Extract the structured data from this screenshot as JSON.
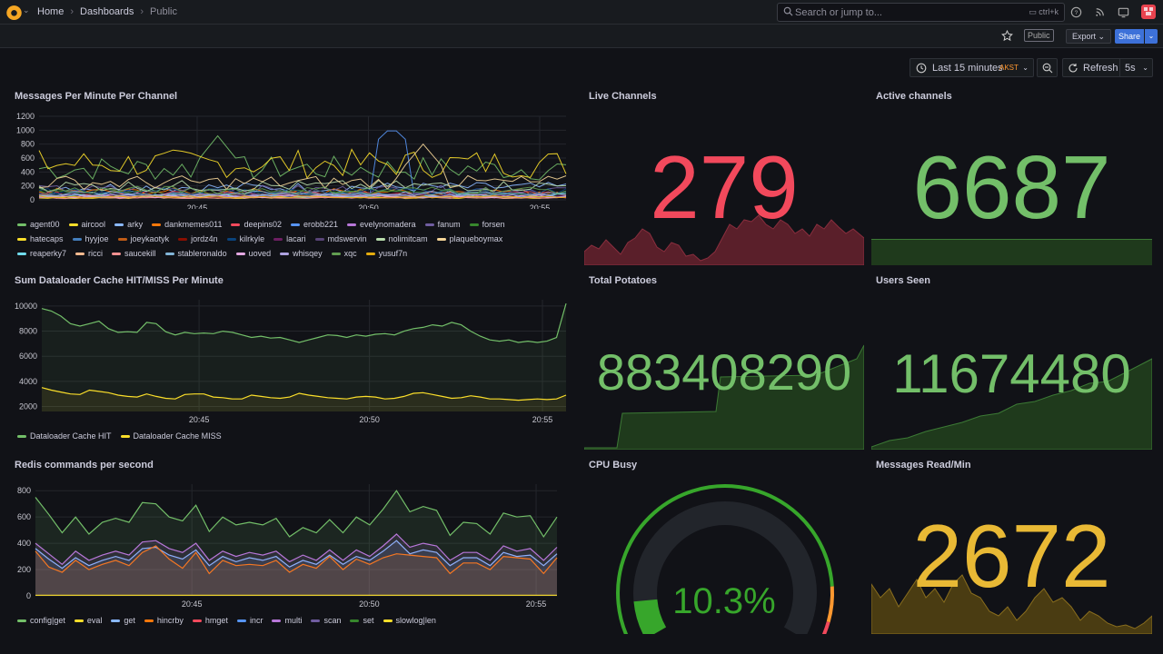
{
  "topbar": {
    "breadcrumb": [
      "Home",
      "Dashboards",
      "Public"
    ],
    "search_placeholder": "Search or jump to...",
    "search_shortcut": "ctrl+k"
  },
  "toolbar": {
    "public_badge": "Public",
    "export_label": "Export",
    "share_label": "Share"
  },
  "time_controls": {
    "range_label": "Last 15 minutes",
    "timezone": "AKST",
    "refresh_label": "Refresh",
    "interval": "5s"
  },
  "panels": {
    "messages_per_minute": {
      "title": "Messages Per Minute Per Channel",
      "chart_data": {
        "type": "line",
        "y_ticks": [
          0,
          200,
          400,
          600,
          800,
          1000,
          1200
        ],
        "x_ticks": [
          "20:45",
          "20:50",
          "20:55"
        ],
        "ylim": [
          0,
          1200
        ],
        "series": [
          {
            "name": "agent00",
            "color": "#73bf69"
          },
          {
            "name": "aircool",
            "color": "#fade2a"
          },
          {
            "name": "arky",
            "color": "#8ab8ff"
          },
          {
            "name": "dankmemes011",
            "color": "#ff780a"
          },
          {
            "name": "deepins02",
            "color": "#f2495c"
          },
          {
            "name": "erobb221",
            "color": "#5794f2"
          },
          {
            "name": "evelynomadera",
            "color": "#b877d9"
          },
          {
            "name": "fanum",
            "color": "#705da0"
          },
          {
            "name": "forsen",
            "color": "#37872d"
          },
          {
            "name": "hatecaps",
            "color": "#fade2a"
          },
          {
            "name": "hyyjoe",
            "color": "#447ebc"
          },
          {
            "name": "joeykaotyk",
            "color": "#c15c17"
          },
          {
            "name": "jordz4n",
            "color": "#890f02"
          },
          {
            "name": "kilrkyle",
            "color": "#0a437c"
          },
          {
            "name": "lacari",
            "color": "#6d1f62"
          },
          {
            "name": "mdswervin",
            "color": "#584477"
          },
          {
            "name": "nolimitcam",
            "color": "#b7dbab"
          },
          {
            "name": "plaqueboymax",
            "color": "#f4d598"
          },
          {
            "name": "reaperky7",
            "color": "#70dbed"
          },
          {
            "name": "ricci",
            "color": "#f9ba8f"
          },
          {
            "name": "saucekill",
            "color": "#f29191"
          },
          {
            "name": "stableronaldo",
            "color": "#82b5d8"
          },
          {
            "name": "uoved",
            "color": "#e5a8e2"
          },
          {
            "name": "whisqey",
            "color": "#aea2e0"
          },
          {
            "name": "xqc",
            "color": "#629e51"
          },
          {
            "name": "yusuf7n",
            "color": "#e5ac0e"
          }
        ]
      }
    },
    "dataloader_cache": {
      "title": "Sum Dataloader Cache HIT/MISS Per Minute",
      "chart_data": {
        "type": "area",
        "y_ticks": [
          2000,
          4000,
          6000,
          8000,
          10000
        ],
        "x_ticks": [
          "20:45",
          "20:50",
          "20:55"
        ],
        "ylim": [
          1600,
          10500
        ],
        "series": [
          {
            "name": "Dataloader Cache HIT",
            "color": "#73bf69",
            "values": [
              9800,
              9600,
              9200,
              8600,
              8400,
              8600,
              8800,
              8200,
              7900,
              7950,
              7900,
              8700,
              8600,
              7950,
              7700,
              7900,
              7800,
              7850,
              7800,
              8000,
              7900,
              7700,
              7500,
              7600,
              7450,
              7500,
              7300,
              7100,
              7300,
              7500,
              7700,
              7650,
              7500,
              7700,
              7600,
              7750,
              7800,
              7700,
              8000,
              8200,
              8300,
              8500,
              8400,
              8700,
              8500,
              8000,
              7600,
              7300,
              7200,
              7300,
              7100,
              7200,
              7100,
              7200,
              7500,
              10200
            ]
          },
          {
            "name": "Dataloader Cache MISS",
            "color": "#fade2a",
            "values": [
              3500,
              3300,
              3150,
              3000,
              2950,
              3300,
              3200,
              3100,
              2900,
              2800,
              2750,
              3000,
              2800,
              2650,
              2600,
              2950,
              3000,
              3000,
              2750,
              2700,
              2600,
              2600,
              2900,
              2800,
              2700,
              2650,
              2750,
              3050,
              2900,
              2800,
              2700,
              2650,
              2600,
              2750,
              2800,
              2750,
              2600,
              2650,
              2800,
              3050,
              3100,
              2950,
              2800,
              2650,
              2700,
              2850,
              2750,
              2600,
              2600,
              2550,
              2500,
              2550,
              2600,
              2550,
              2600,
              2900
            ]
          }
        ]
      }
    },
    "redis_commands": {
      "title": "Redis commands per second",
      "chart_data": {
        "type": "area",
        "y_ticks": [
          0,
          200,
          400,
          600,
          800
        ],
        "x_ticks": [
          "20:45",
          "20:50",
          "20:55"
        ],
        "ylim": [
          0,
          850
        ],
        "series": [
          {
            "name": "config|get",
            "color": "#73bf69",
            "values": [
              750,
              620,
              480,
              600,
              470,
              560,
              590,
              560,
              710,
              700,
              600,
              570,
              690,
              490,
              600,
              540,
              560,
              540,
              590,
              450,
              520,
              480,
              580,
              480,
              600,
              540,
              660,
              800,
              640,
              680,
              650,
              460,
              560,
              550,
              470,
              630,
              600,
              610,
              450,
              600
            ]
          },
          {
            "name": "eval",
            "color": "#fade2a",
            "values": []
          },
          {
            "name": "get",
            "color": "#8ab8ff",
            "values": [
              360,
              280,
              210,
              290,
              230,
              270,
              300,
              270,
              360,
              370,
              310,
              280,
              350,
              230,
              300,
              260,
              290,
              270,
              300,
              220,
              270,
              240,
              310,
              240,
              300,
              270,
              340,
              420,
              320,
              350,
              330,
              230,
              290,
              290,
              230,
              330,
              300,
              310,
              230,
              320
            ]
          },
          {
            "name": "hincrby",
            "color": "#ff780a",
            "values": [
              340,
              220,
              180,
              270,
              200,
              240,
              270,
              230,
              330,
              380,
              280,
              210,
              330,
              170,
              270,
              230,
              240,
              230,
              270,
              180,
              240,
              210,
              300,
              200,
              280,
              240,
              290,
              320,
              310,
              300,
              290,
              170,
              250,
              250,
              200,
              300,
              290,
              280,
              170,
              290
            ]
          },
          {
            "name": "hmget",
            "color": "#f2495c",
            "values": []
          },
          {
            "name": "incr",
            "color": "#5794f2",
            "values": []
          },
          {
            "name": "multi",
            "color": "#b877d9",
            "values": [
              400,
              320,
              240,
              340,
              270,
              310,
              340,
              310,
              410,
              420,
              360,
              330,
              400,
              270,
              340,
              300,
              330,
              310,
              340,
              260,
              310,
              270,
              350,
              270,
              350,
              300,
              380,
              470,
              370,
              400,
              380,
              270,
              330,
              330,
              270,
              380,
              340,
              360,
              270,
              370
            ]
          },
          {
            "name": "scan",
            "color": "#705da0",
            "values": []
          },
          {
            "name": "set",
            "color": "#37872d",
            "values": []
          },
          {
            "name": "slowlog|len",
            "color": "#fade2a",
            "values": [
              5,
              5,
              5,
              5,
              5,
              5,
              5,
              5,
              5,
              5,
              5,
              5,
              5,
              5,
              5,
              5,
              5,
              5,
              5,
              5,
              5,
              5,
              5,
              5,
              5,
              5,
              5,
              5,
              5,
              5,
              5,
              5,
              5,
              5,
              5,
              5,
              5,
              5,
              5,
              5
            ]
          }
        ]
      }
    },
    "live_channels": {
      "title": "Live Channels",
      "value": "279",
      "color": "#f2495c"
    },
    "active_channels": {
      "title": "Active channels",
      "value": "6687",
      "color": "#73bf69"
    },
    "total_potatoes": {
      "title": "Total Potatoes",
      "value": "883408290",
      "color": "#73bf69"
    },
    "users_seen": {
      "title": "Users Seen",
      "value": "11674480",
      "color": "#73bf69"
    },
    "cpu_busy": {
      "title": "CPU Busy",
      "value": "10.3%",
      "percent": 10.3,
      "color": "#37a62b"
    },
    "messages_read": {
      "title": "Messages Read/Min",
      "value": "2672",
      "color": "#e9b935"
    }
  }
}
